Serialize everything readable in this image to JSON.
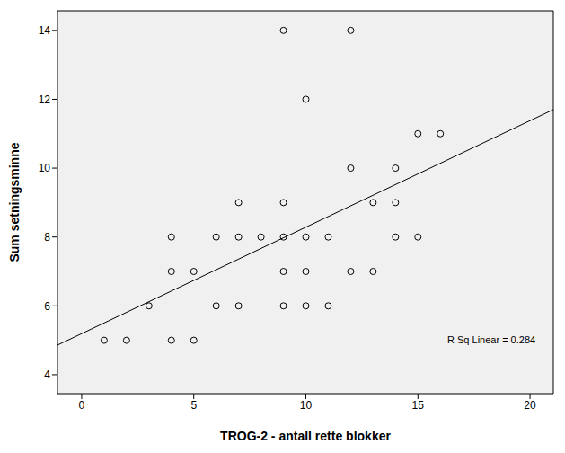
{
  "chart_data": {
    "type": "scatter",
    "x_label": "TROG-2 - antall rette blokker",
    "y_label": "Sum setningsminne",
    "x": [
      1,
      2,
      3,
      4,
      4,
      4,
      5,
      5,
      6,
      6,
      7,
      7,
      7,
      8,
      9,
      9,
      9,
      9,
      9,
      10,
      10,
      10,
      10,
      11,
      11,
      12,
      12,
      12,
      13,
      13,
      14,
      14,
      14,
      15,
      15,
      16
    ],
    "values": [
      5,
      5,
      6,
      8,
      7,
      5,
      7,
      5,
      8,
      6,
      9,
      8,
      6,
      8,
      14,
      9,
      8,
      7,
      6,
      12,
      8,
      7,
      6,
      8,
      6,
      14,
      10,
      7,
      9,
      7,
      10,
      9,
      8,
      11,
      8,
      11
    ],
    "marker": "circle",
    "color": "#000000",
    "fit_line": {
      "x": [
        -1.08,
        21.04
      ],
      "y": [
        4.86,
        11.7
      ]
    },
    "annotations": [
      "R Sq Linear = 0.284"
    ],
    "xlim": [
      -1.08,
      21.04
    ],
    "ylim": [
      3.45,
      14.57
    ],
    "xticks": [
      0,
      5,
      10,
      15,
      20
    ],
    "yticks": [
      4,
      6,
      8,
      10,
      12,
      14
    ],
    "grid": false
  }
}
